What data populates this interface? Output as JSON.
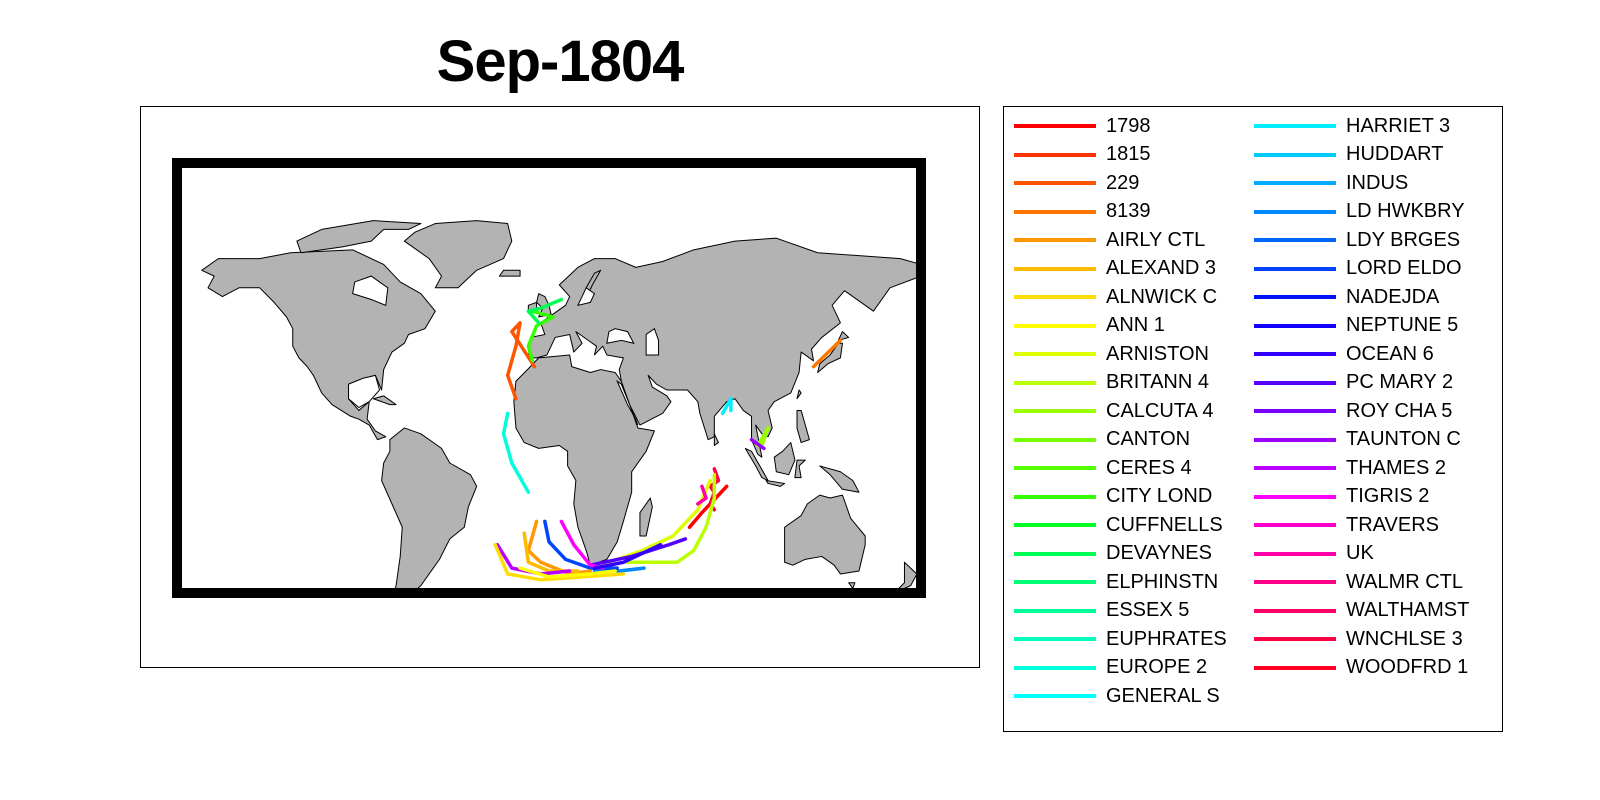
{
  "title": "Sep-1804",
  "map": {
    "land_color": "#b3b3b3",
    "frame_color": "#000000",
    "projection": "Miller cylindrical, world extent"
  },
  "legend": {
    "items": [
      {
        "label": "1798",
        "color": "#ff0000"
      },
      {
        "label": "1815",
        "color": "#ff3300"
      },
      {
        "label": "229",
        "color": "#ff5500"
      },
      {
        "label": "8139",
        "color": "#ff7700"
      },
      {
        "label": "AIRLY CTL",
        "color": "#ff9900"
      },
      {
        "label": "ALEXAND 3",
        "color": "#ffbb00"
      },
      {
        "label": "ALNWICK C",
        "color": "#ffdd00"
      },
      {
        "label": "ANN 1",
        "color": "#ffff00"
      },
      {
        "label": "ARNISTON",
        "color": "#ddff00"
      },
      {
        "label": "BRITANN 4",
        "color": "#bbff00"
      },
      {
        "label": "CALCUTA 4",
        "color": "#99ff00"
      },
      {
        "label": "CANTON",
        "color": "#77ff00"
      },
      {
        "label": "CERES 4",
        "color": "#55ff00"
      },
      {
        "label": "CITY LOND",
        "color": "#33ff00"
      },
      {
        "label": "CUFFNELLS",
        "color": "#00ff22"
      },
      {
        "label": "DEVAYNES",
        "color": "#00ff55"
      },
      {
        "label": "ELPHINSTN",
        "color": "#00ff77"
      },
      {
        "label": "ESSEX 5",
        "color": "#00ff99"
      },
      {
        "label": "EUPHRATES",
        "color": "#00ffbb"
      },
      {
        "label": "EUROPE 2",
        "color": "#00ffdd"
      },
      {
        "label": "GENERAL S",
        "color": "#00ffff"
      },
      {
        "label": "HARRIET 3",
        "color": "#00eeff"
      },
      {
        "label": "HUDDART",
        "color": "#00ccff"
      },
      {
        "label": "INDUS",
        "color": "#00aaff"
      },
      {
        "label": "LD HWKBRY",
        "color": "#0088ff"
      },
      {
        "label": "LDY BRGES",
        "color": "#0066ff"
      },
      {
        "label": "LORD ELDO",
        "color": "#0044ff"
      },
      {
        "label": "NADEJDA",
        "color": "#0011ff"
      },
      {
        "label": "NEPTUNE 5",
        "color": "#1100ff"
      },
      {
        "label": "OCEAN 6",
        "color": "#3300ff"
      },
      {
        "label": "PC MARY 2",
        "color": "#5500ff"
      },
      {
        "label": "ROY CHA 5",
        "color": "#7700ff"
      },
      {
        "label": "TAUNTON C",
        "color": "#9900ff"
      },
      {
        "label": "THAMES 2",
        "color": "#bb00ff"
      },
      {
        "label": "TIGRIS 2",
        "color": "#ff00ff"
      },
      {
        "label": "TRAVERS",
        "color": "#ff00cc"
      },
      {
        "label": "UK",
        "color": "#ff00aa"
      },
      {
        "label": "WALMR CTL",
        "color": "#ff0088"
      },
      {
        "label": "WALTHAMST",
        "color": "#ff0066"
      },
      {
        "label": "WNCHLSE 3",
        "color": "#ff0044"
      },
      {
        "label": "WOODFRD 1",
        "color": "#ff0022"
      }
    ]
  },
  "tracks": [
    {
      "ship": "8139",
      "color": "#ff7700",
      "lonlat": [
        [
          128,
          33
        ],
        [
          141,
          42
        ]
      ]
    },
    {
      "ship": "229",
      "color": "#ff5500",
      "lonlat": [
        [
          -7,
          33
        ],
        [
          -18,
          45
        ],
        [
          -14,
          48
        ],
        [
          -16,
          40
        ],
        [
          -20,
          30
        ],
        [
          -16,
          22
        ]
      ]
    },
    {
      "ship": "CITY LOND",
      "color": "#33ff00",
      "lonlat": [
        [
          -8,
          35
        ],
        [
          -10,
          40
        ],
        [
          -6,
          47
        ],
        [
          2,
          50
        ],
        [
          -8,
          52
        ]
      ]
    },
    {
      "ship": "DEVAYNES",
      "color": "#00ff55",
      "lonlat": [
        [
          -5,
          48
        ],
        [
          -10,
          52
        ],
        [
          -4,
          53
        ],
        [
          6,
          56
        ]
      ]
    },
    {
      "ship": "EUROPE 2",
      "color": "#00ffdd",
      "lonlat": [
        [
          -10,
          -10
        ],
        [
          -18,
          0
        ],
        [
          -22,
          10
        ],
        [
          -20,
          17
        ]
      ]
    },
    {
      "ship": "HARRIET 3",
      "color": "#00eeff",
      "lonlat": [
        [
          84,
          17
        ],
        [
          88,
          22
        ],
        [
          88,
          18
        ]
      ]
    },
    {
      "ship": "CALCUTA 4",
      "color": "#99ff00",
      "lonlat": [
        [
          103,
          6
        ],
        [
          106,
          12
        ],
        [
          101,
          6
        ]
      ]
    },
    {
      "ship": "TAUNTON C",
      "color": "#9900ff",
      "lonlat": [
        [
          98,
          8
        ],
        [
          104,
          5
        ]
      ]
    },
    {
      "ship": "1798",
      "color": "#ff0000",
      "lonlat": [
        [
          68,
          -22
        ],
        [
          74,
          -17
        ],
        [
          82,
          -11
        ],
        [
          86,
          -8
        ]
      ]
    },
    {
      "ship": "WNCHLSE 3",
      "color": "#ff0044",
      "lonlat": [
        [
          80,
          -2
        ],
        [
          82,
          -6
        ],
        [
          78,
          -8
        ],
        [
          80,
          -10
        ],
        [
          78,
          -14
        ],
        [
          80,
          -16
        ]
      ]
    },
    {
      "ship": "BRITANN 4",
      "color": "#bbff00",
      "lonlat": [
        [
          38,
          -34
        ],
        [
          48,
          -34
        ],
        [
          62,
          -34
        ],
        [
          70,
          -30
        ],
        [
          76,
          -22
        ],
        [
          80,
          -12
        ],
        [
          80,
          -4
        ]
      ]
    },
    {
      "ship": "ARNISTON",
      "color": "#ddff00",
      "lonlat": [
        [
          25,
          -35
        ],
        [
          45,
          -30
        ],
        [
          60,
          -25
        ],
        [
          72,
          -16
        ],
        [
          78,
          -6
        ]
      ]
    },
    {
      "ship": "PC MARY 2",
      "color": "#5500ff",
      "lonlat": [
        [
          20,
          -35
        ],
        [
          40,
          -32
        ],
        [
          58,
          -28
        ],
        [
          66,
          -26
        ]
      ]
    },
    {
      "ship": "LD HWKBRY",
      "color": "#0088ff",
      "lonlat": [
        [
          22,
          -37
        ],
        [
          34,
          -37
        ],
        [
          46,
          -36
        ]
      ]
    },
    {
      "ship": "LORD ELDO",
      "color": "#0044ff",
      "lonlat": [
        [
          -2,
          -20
        ],
        [
          0,
          -27
        ],
        [
          8,
          -33
        ],
        [
          20,
          -36
        ],
        [
          33,
          -36
        ]
      ]
    },
    {
      "ship": "AIRLY CTL",
      "color": "#ff9900",
      "lonlat": [
        [
          -6,
          -20
        ],
        [
          -10,
          -30
        ],
        [
          -4,
          -34
        ],
        [
          10,
          -38
        ],
        [
          20,
          -37
        ]
      ]
    },
    {
      "ship": "ALEXAND 3",
      "color": "#ffbb00",
      "lonlat": [
        [
          -12,
          -24
        ],
        [
          -10,
          -34
        ],
        [
          0,
          -37
        ],
        [
          14,
          -37
        ]
      ]
    },
    {
      "ship": "TIGRIS 2",
      "color": "#ff00ff",
      "lonlat": [
        [
          6,
          -20
        ],
        [
          12,
          -28
        ],
        [
          20,
          -35
        ],
        [
          26,
          -36
        ]
      ]
    },
    {
      "ship": "THAMES 2",
      "color": "#bb00ff",
      "lonlat": [
        [
          -25,
          -28
        ],
        [
          -18,
          -36
        ],
        [
          -4,
          -38
        ],
        [
          10,
          -37
        ]
      ]
    },
    {
      "ship": "ALNWICK C",
      "color": "#ffdd00",
      "lonlat": [
        [
          -26,
          -28
        ],
        [
          -20,
          -38
        ],
        [
          -4,
          -40
        ],
        [
          16,
          -39
        ],
        [
          36,
          -38
        ]
      ]
    },
    {
      "ship": "ANN 1",
      "color": "#ffff00",
      "lonlat": [
        [
          -14,
          -36
        ],
        [
          0,
          -39
        ],
        [
          20,
          -38
        ],
        [
          32,
          -37
        ]
      ]
    },
    {
      "ship": "OCEAN 6",
      "color": "#3300ff",
      "lonlat": [
        [
          22,
          -36
        ],
        [
          36,
          -34
        ],
        [
          48,
          -30
        ],
        [
          54,
          -28
        ]
      ]
    },
    {
      "ship": "UK",
      "color": "#ff00aa",
      "lonlat": [
        [
          74,
          -8
        ],
        [
          76,
          -12
        ],
        [
          72,
          -14
        ]
      ]
    }
  ]
}
